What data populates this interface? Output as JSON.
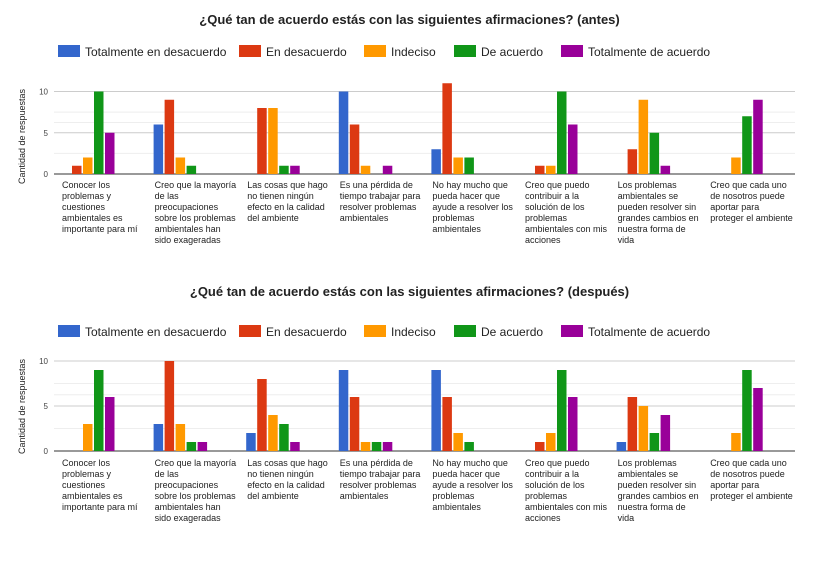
{
  "chart_data": [
    {
      "type": "bar",
      "title": "¿Qué tan de acuerdo estás con las siguientes afirmaciones? (antes)",
      "ylabel": "Cantidad de respuestas",
      "xlabel": "",
      "ylim": [
        0,
        11
      ],
      "yticks": [
        0,
        5,
        10
      ],
      "grid": true,
      "legend_position": "top",
      "categories": [
        "Conocer los problemas y cuestiones ambientales es importante para mí",
        "Creo que la mayoría de las preocupaciones sobre los problemas ambientales han sido exageradas",
        "Las cosas que hago no tienen ningún efecto en la calidad del ambiente",
        "Es una pérdida de tiempo trabajar para resolver problemas ambientales",
        "No hay mucho que pueda hacer que ayude a resolver los problemas ambientales",
        "Creo que puedo contribuir a la solución de los problemas ambientales con mis acciones",
        "Los problemas ambientales se pueden resolver sin grandes cambios en nuestra forma de vida",
        "Creo que cada uno de nosotros puede aportar para proteger el ambiente"
      ],
      "series": [
        {
          "name": "Totalmente en desacuerdo",
          "color": "#3366cc",
          "values": [
            0,
            6,
            0,
            10,
            3,
            0,
            0,
            0
          ]
        },
        {
          "name": "En desacuerdo",
          "color": "#dc3912",
          "values": [
            1,
            9,
            8,
            6,
            11,
            1,
            3,
            0
          ]
        },
        {
          "name": "Indeciso",
          "color": "#ff9900",
          "values": [
            2,
            2,
            8,
            1,
            2,
            1,
            9,
            2
          ]
        },
        {
          "name": "De acuerdo",
          "color": "#109618",
          "values": [
            10,
            1,
            1,
            0,
            2,
            10,
            5,
            7
          ]
        },
        {
          "name": "Totalmente de acuerdo",
          "color": "#990099",
          "values": [
            5,
            0,
            1,
            1,
            0,
            6,
            1,
            9
          ]
        }
      ]
    },
    {
      "type": "bar",
      "title": "¿Qué tan de acuerdo estás con las siguientes afirmaciones? (después)",
      "ylabel": "Cantidad de respuestas",
      "xlabel": "",
      "ylim": [
        0,
        10
      ],
      "yticks": [
        0,
        5,
        10
      ],
      "grid": true,
      "legend_position": "top",
      "categories": [
        "Conocer los problemas y cuestiones ambientales es importante para mí",
        "Creo que la mayoría de las preocupaciones sobre los problemas ambientales han sido exageradas",
        "Las cosas que hago no tienen ningún efecto en la calidad del ambiente",
        "Es una pérdida de tiempo trabajar para resolver problemas ambientales",
        "No hay mucho que pueda hacer que ayude a resolver los problemas ambientales",
        "Creo que puedo contribuir a la solución de los problemas ambientales con mis acciones",
        "Los problemas ambientales se pueden resolver sin grandes cambios en nuestra forma de vida",
        "Creo que cada uno de nosotros puede aportar para proteger el ambiente"
      ],
      "series": [
        {
          "name": "Totalmente en desacuerdo",
          "color": "#3366cc",
          "values": [
            0,
            3,
            2,
            9,
            9,
            0,
            1,
            0
          ]
        },
        {
          "name": "En desacuerdo",
          "color": "#dc3912",
          "values": [
            0,
            10,
            8,
            6,
            6,
            1,
            6,
            0
          ]
        },
        {
          "name": "Indeciso",
          "color": "#ff9900",
          "values": [
            3,
            3,
            4,
            1,
            2,
            2,
            5,
            2
          ]
        },
        {
          "name": "De acuerdo",
          "color": "#109618",
          "values": [
            9,
            1,
            3,
            1,
            1,
            9,
            2,
            9
          ]
        },
        {
          "name": "Totalmente de acuerdo",
          "color": "#990099",
          "values": [
            6,
            1,
            1,
            1,
            0,
            6,
            4,
            7
          ]
        }
      ]
    }
  ]
}
